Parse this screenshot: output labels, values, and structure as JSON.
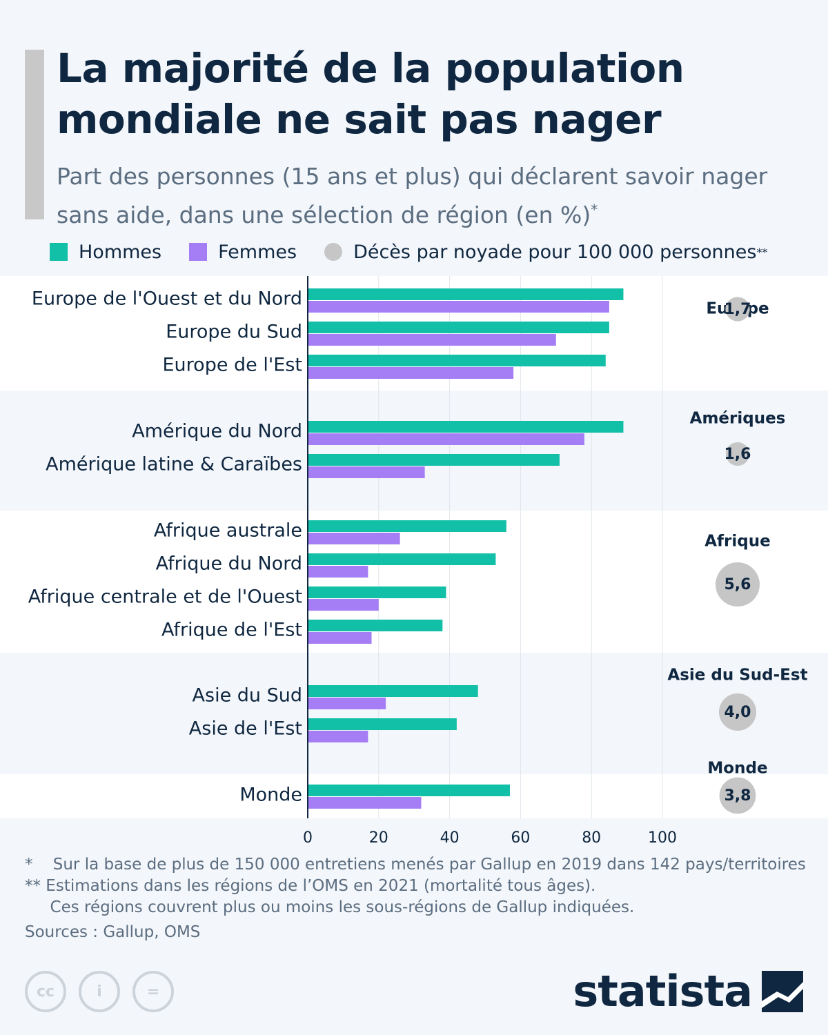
{
  "title": "La majorité de la population mondiale ne sait pas nager",
  "subtitle": "Part des personnes (15 ans et plus) qui déclarent savoir nager sans aide, dans une sélection de région (en %)",
  "subtitle_marker": "*",
  "legend": {
    "hommes": "Hommes",
    "femmes": "Femmes",
    "deces": "Décès par noyade pour 100 000 personnes",
    "deces_marker": "**"
  },
  "colors": {
    "hommes": "#12bfa7",
    "femmes": "#a57ef5",
    "bubble": "#c6c6c6",
    "band_light": "#ffffff",
    "band_dark": "#f3f6fa",
    "text": "#0f2740"
  },
  "chart_data": {
    "type": "bar",
    "orientation": "horizontal",
    "xlim": [
      0,
      100
    ],
    "xticks": [
      0,
      20,
      40,
      60,
      80,
      100
    ],
    "grid": true,
    "categories": [
      "Europe de l'Ouest et du Nord",
      "Europe du Sud",
      "Europe de l'Est",
      "Amérique du Nord",
      "Amérique latine & Caraïbes",
      "Afrique australe",
      "Afrique du Nord",
      "Afrique centrale et de l'Ouest",
      "Afrique de l'Est",
      "Asie du Sud",
      "Asie de l'Est",
      "Monde"
    ],
    "series": [
      {
        "name": "Hommes",
        "values": [
          89,
          85,
          84,
          89,
          71,
          56,
          53,
          39,
          38,
          48,
          42,
          57
        ]
      },
      {
        "name": "Femmes",
        "values": [
          85,
          70,
          58,
          78,
          33,
          26,
          17,
          20,
          18,
          22,
          17,
          32
        ]
      }
    ],
    "groups": [
      {
        "start": 0,
        "count": 3,
        "region": "Europe",
        "deaths": 1.7,
        "deaths_label": "1,7"
      },
      {
        "start": 3,
        "count": 2,
        "region": "Amériques",
        "deaths": 1.6,
        "deaths_label": "1,6"
      },
      {
        "start": 5,
        "count": 4,
        "region": "Afrique",
        "deaths": 5.6,
        "deaths_label": "5,6"
      },
      {
        "start": 9,
        "count": 2,
        "region": "Asie du Sud-Est",
        "deaths": 4.0,
        "deaths_label": "4,0"
      },
      {
        "start": 11,
        "count": 1,
        "region": "Monde",
        "deaths": 3.8,
        "deaths_label": "3,8"
      }
    ]
  },
  "footnotes": {
    "note1": "*    Sur la base de plus de 150 000 entretiens menés par Gallup en 2019 dans 142 pays/territoires",
    "note2": "** Estimations dans les régions de l’OMS en 2021 (mortalité tous âges).",
    "note3": "     Ces régions couvrent plus ou moins les sous-régions de Gallup indiquées."
  },
  "sources": "Sources : Gallup, OMS",
  "license_icons": [
    "cc-icon",
    "by-person-icon",
    "nd-equals-icon"
  ],
  "license_glyphs": [
    "cc",
    "i",
    "="
  ],
  "brand": "statista"
}
